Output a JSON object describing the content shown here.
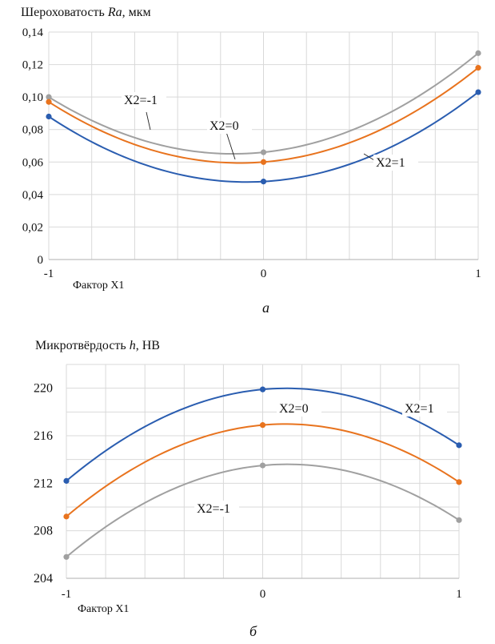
{
  "chart_data": [
    {
      "type": "line",
      "id": "a",
      "title_prefix": "Шероховатость ",
      "title_var": "Ra",
      "title_suffix": ", мкм",
      "xlabel": "Фактор X1",
      "ylabel": "Шероховатость Ra, мкм",
      "caption": "а",
      "x": [
        -1,
        0,
        1
      ],
      "xlim": [
        -1,
        1
      ],
      "ylim": [
        0,
        0.14
      ],
      "x_ticks": [
        "-1",
        "0",
        "1"
      ],
      "y_ticks": [
        "0",
        "0,02",
        "0,04",
        "0,06",
        "0,08",
        "0,10",
        "0,12",
        "0,14"
      ],
      "y_tick_values": [
        0,
        0.02,
        0.04,
        0.06,
        0.08,
        0.1,
        0.12,
        0.14
      ],
      "grid": true,
      "curve": "smooth-parabolic",
      "series": [
        {
          "name": "X2=-1",
          "color": "#a0a0a0",
          "values": [
            0.1,
            0.066,
            0.127
          ]
        },
        {
          "name": "X2=0",
          "color": "#e8731e",
          "values": [
            0.097,
            0.06,
            0.118
          ]
        },
        {
          "name": "X2=1",
          "color": "#2a5db0",
          "values": [
            0.088,
            0.048,
            0.103
          ]
        }
      ],
      "annotations": [
        {
          "text": "X2=-1",
          "series": "X2=-1"
        },
        {
          "text": "X2=0",
          "series": "X2=0"
        },
        {
          "text": "X2=1",
          "series": "X2=1"
        }
      ]
    },
    {
      "type": "line",
      "id": "b",
      "title_prefix": "Микротвёрдость ",
      "title_var": "h",
      "title_suffix": ", НВ",
      "xlabel": "Фактор X1",
      "ylabel": "Микротвёрдость h, НВ",
      "caption": "б",
      "x": [
        -1,
        0,
        1
      ],
      "xlim": [
        -1,
        1
      ],
      "ylim": [
        204,
        222
      ],
      "x_ticks": [
        "-1",
        "0",
        "1"
      ],
      "y_ticks": [
        "204",
        "208",
        "212",
        "216",
        "220"
      ],
      "y_tick_values": [
        204,
        208,
        212,
        216,
        220
      ],
      "grid": true,
      "curve": "smooth-parabolic",
      "series": [
        {
          "name": "X2=1",
          "color": "#2a5db0",
          "values": [
            212.2,
            219.9,
            215.2
          ]
        },
        {
          "name": "X2=0",
          "color": "#e8731e",
          "values": [
            209.2,
            216.9,
            212.1
          ]
        },
        {
          "name": "X2=-1",
          "color": "#a0a0a0",
          "values": [
            205.8,
            213.5,
            208.9
          ]
        }
      ],
      "annotations": [
        {
          "text": "X2=1",
          "series": "X2=1"
        },
        {
          "text": "X2=0",
          "series": "X2=0"
        },
        {
          "text": "X2=-1",
          "series": "X2=-1"
        }
      ]
    }
  ]
}
